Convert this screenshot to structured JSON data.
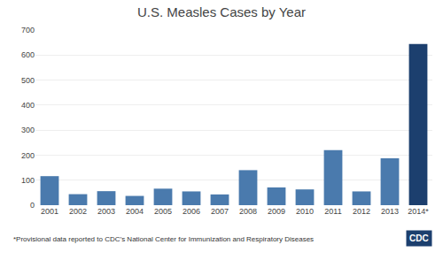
{
  "chart_data": {
    "type": "bar",
    "title": "U.S. Measles Cases by Year",
    "categories": [
      "2001",
      "2002",
      "2003",
      "2004",
      "2005",
      "2006",
      "2007",
      "2008",
      "2009",
      "2010",
      "2011",
      "2012",
      "2013",
      "2014*"
    ],
    "values": [
      116,
      44,
      56,
      37,
      66,
      55,
      43,
      140,
      71,
      63,
      220,
      55,
      187,
      644
    ],
    "colors": [
      "#4a7aad",
      "#4a7aad",
      "#4a7aad",
      "#4a7aad",
      "#4a7aad",
      "#4a7aad",
      "#4a7aad",
      "#4a7aad",
      "#4a7aad",
      "#4a7aad",
      "#4a7aad",
      "#4a7aad",
      "#4a7aad",
      "#1c3f6e"
    ],
    "ylim": [
      0,
      700
    ],
    "yticks": [
      0,
      100,
      200,
      300,
      400,
      500,
      600,
      700
    ],
    "grid": true,
    "annotations": [
      "*Provisional data reported to CDC’s National Center for Immunization and Respiratory Diseases",
      "CDC"
    ]
  }
}
